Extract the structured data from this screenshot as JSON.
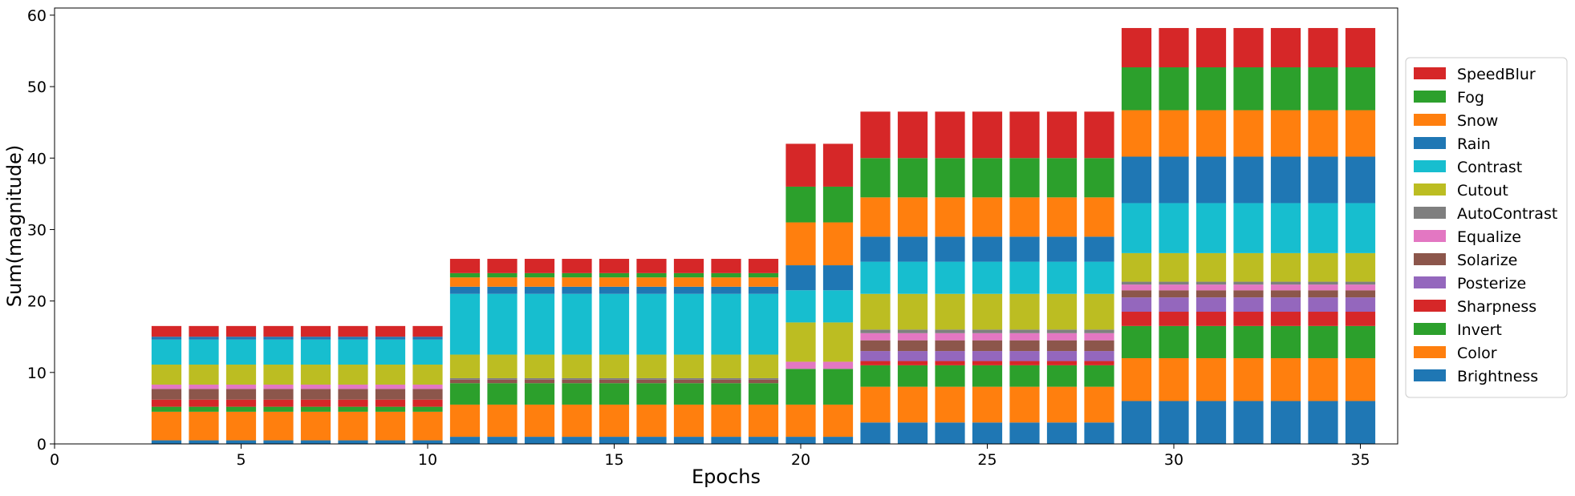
{
  "chart_data": {
    "type": "bar",
    "stacked": true,
    "xlabel": "Epochs",
    "ylabel": "Sum(magnitude)",
    "xlim": [
      0,
      36
    ],
    "ylim": [
      0,
      61
    ],
    "x_ticks": [
      0,
      5,
      10,
      15,
      20,
      25,
      30,
      35
    ],
    "y_ticks": [
      0,
      10,
      20,
      30,
      40,
      50,
      60
    ],
    "legend_position": "right",
    "grid": false,
    "x": [
      3,
      4,
      5,
      6,
      7,
      8,
      9,
      10,
      11,
      12,
      13,
      14,
      15,
      16,
      17,
      18,
      19,
      20,
      21,
      22,
      23,
      24,
      25,
      26,
      27,
      28,
      29,
      30,
      31,
      32,
      33,
      34,
      35
    ],
    "series": [
      {
        "name": "Brightness",
        "color": "#1f77b4",
        "values": [
          0.5,
          0.5,
          0.5,
          0.5,
          0.5,
          0.5,
          0.5,
          0.5,
          1,
          1,
          1,
          1,
          1,
          1,
          1,
          1,
          1,
          1,
          1,
          3,
          3,
          3,
          3,
          3,
          3,
          3,
          6,
          6,
          6,
          6,
          6,
          6,
          6
        ]
      },
      {
        "name": "Color",
        "color": "#ff7f0e",
        "values": [
          4,
          4,
          4,
          4,
          4,
          4,
          4,
          4,
          4.5,
          4.5,
          4.5,
          4.5,
          4.5,
          4.5,
          4.5,
          4.5,
          4.5,
          4.5,
          4.5,
          5,
          5,
          5,
          5,
          5,
          5,
          5,
          6,
          6,
          6,
          6,
          6,
          6,
          6
        ]
      },
      {
        "name": "Invert",
        "color": "#2ca02c",
        "values": [
          0.7,
          0.7,
          0.7,
          0.7,
          0.7,
          0.7,
          0.7,
          0.7,
          3,
          3,
          3,
          3,
          3,
          3,
          3,
          3,
          3,
          5,
          5,
          3,
          3,
          3,
          3,
          3,
          3,
          3,
          4.5,
          4.5,
          4.5,
          4.5,
          4.5,
          4.5,
          4.5
        ]
      },
      {
        "name": "Sharpness",
        "color": "#d62728",
        "values": [
          1,
          1,
          1,
          1,
          1,
          1,
          1,
          1,
          0,
          0,
          0,
          0,
          0,
          0,
          0,
          0,
          0,
          0,
          0,
          0.6,
          0.6,
          0.6,
          0.6,
          0.6,
          0.6,
          0.6,
          2,
          2,
          2,
          2,
          2,
          2,
          2
        ]
      },
      {
        "name": "Posterize",
        "color": "#9467bd",
        "values": [
          0,
          0,
          0,
          0,
          0,
          0,
          0,
          0,
          0,
          0,
          0,
          0,
          0,
          0,
          0,
          0,
          0,
          0,
          0,
          1.4,
          1.4,
          1.4,
          1.4,
          1.4,
          1.4,
          1.4,
          2,
          2,
          2,
          2,
          2,
          2,
          2
        ]
      },
      {
        "name": "Solarize",
        "color": "#8c564b",
        "values": [
          1.5,
          1.5,
          1.5,
          1.5,
          1.5,
          1.5,
          1.5,
          1.5,
          0.5,
          0.5,
          0.5,
          0.5,
          0.5,
          0.5,
          0.5,
          0.5,
          0.5,
          0,
          0,
          1.5,
          1.5,
          1.5,
          1.5,
          1.5,
          1.5,
          1.5,
          1,
          1,
          1,
          1,
          1,
          1,
          1
        ]
      },
      {
        "name": "Equalize",
        "color": "#e377c2",
        "values": [
          0.6,
          0.6,
          0.6,
          0.6,
          0.6,
          0.6,
          0.6,
          0.6,
          0,
          0,
          0,
          0,
          0,
          0,
          0,
          0,
          0,
          1,
          1,
          1,
          1,
          1,
          1,
          1,
          1,
          1,
          0.8,
          0.8,
          0.8,
          0.8,
          0.8,
          0.8,
          0.8
        ]
      },
      {
        "name": "AutoContrast",
        "color": "#7f7f7f",
        "values": [
          0,
          0,
          0,
          0,
          0,
          0,
          0,
          0,
          0.2,
          0.2,
          0.2,
          0.2,
          0.2,
          0.2,
          0.2,
          0.2,
          0.2,
          0,
          0,
          0.5,
          0.5,
          0.5,
          0.5,
          0.5,
          0.5,
          0.5,
          0.4,
          0.4,
          0.4,
          0.4,
          0.4,
          0.4,
          0.4
        ]
      },
      {
        "name": "Cutout",
        "color": "#bcbd22",
        "values": [
          2.8,
          2.8,
          2.8,
          2.8,
          2.8,
          2.8,
          2.8,
          2.8,
          3.3,
          3.3,
          3.3,
          3.3,
          3.3,
          3.3,
          3.3,
          3.3,
          3.3,
          5.5,
          5.5,
          5,
          5,
          5,
          5,
          5,
          5,
          5,
          4,
          4,
          4,
          4,
          4,
          4,
          4
        ]
      },
      {
        "name": "Contrast",
        "color": "#17becf",
        "values": [
          3.5,
          3.5,
          3.5,
          3.5,
          3.5,
          3.5,
          3.5,
          3.5,
          8.5,
          8.5,
          8.5,
          8.5,
          8.5,
          8.5,
          8.5,
          8.5,
          8.5,
          4.5,
          4.5,
          4.5,
          4.5,
          4.5,
          4.5,
          4.5,
          4.5,
          4.5,
          7,
          7,
          7,
          7,
          7,
          7,
          7
        ]
      },
      {
        "name": "Rain",
        "color": "#1f77b4",
        "values": [
          0.4,
          0.4,
          0.4,
          0.4,
          0.4,
          0.4,
          0.4,
          0.4,
          1,
          1,
          1,
          1,
          1,
          1,
          1,
          1,
          1,
          3.5,
          3.5,
          3.5,
          3.5,
          3.5,
          3.5,
          3.5,
          3.5,
          3.5,
          6.5,
          6.5,
          6.5,
          6.5,
          6.5,
          6.5,
          6.5
        ]
      },
      {
        "name": "Snow",
        "color": "#ff7f0e",
        "values": [
          0,
          0,
          0,
          0,
          0,
          0,
          0,
          0,
          1.3,
          1.3,
          1.3,
          1.3,
          1.3,
          1.3,
          1.3,
          1.3,
          1.3,
          6,
          6,
          5.5,
          5.5,
          5.5,
          5.5,
          5.5,
          5.5,
          5.5,
          6.5,
          6.5,
          6.5,
          6.5,
          6.5,
          6.5,
          6.5
        ]
      },
      {
        "name": "Fog",
        "color": "#2ca02c",
        "values": [
          0,
          0,
          0,
          0,
          0,
          0,
          0,
          0,
          0.6,
          0.6,
          0.6,
          0.6,
          0.6,
          0.6,
          0.6,
          0.6,
          0.6,
          5,
          5,
          5.5,
          5.5,
          5.5,
          5.5,
          5.5,
          5.5,
          5.5,
          6,
          6,
          6,
          6,
          6,
          6,
          6
        ]
      },
      {
        "name": "SpeedBlur",
        "color": "#d62728",
        "values": [
          1.5,
          1.5,
          1.5,
          1.5,
          1.5,
          1.5,
          1.5,
          1.5,
          2,
          2,
          2,
          2,
          2,
          2,
          2,
          2,
          2,
          6,
          6,
          6.5,
          6.5,
          6.5,
          6.5,
          6.5,
          6.5,
          6.5,
          5.5,
          5.5,
          5.5,
          5.5,
          5.5,
          5.5,
          5.5
        ]
      }
    ]
  }
}
